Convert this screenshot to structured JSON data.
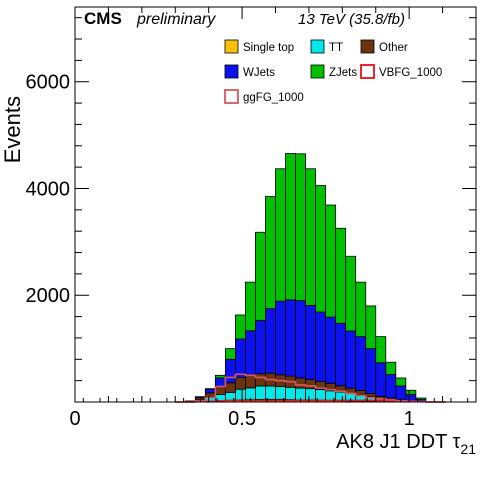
{
  "chart_data": {
    "type": "bar",
    "stacked": true,
    "experiment": "CMS",
    "status": "preliminary",
    "energy": "13 TeV (35.8/fb)",
    "xlabel_main": "AK8 J1 DDT ",
    "xlabel_symbol": "τ",
    "xlabel_sub": "21",
    "ylabel": "Events",
    "xlim": [
      0,
      1.2
    ],
    "ylim": [
      0,
      7400
    ],
    "x_ticks": [
      {
        "value": 0,
        "label": "0"
      },
      {
        "value": 0.5,
        "label": "0.5"
      },
      {
        "value": 1,
        "label": "1"
      }
    ],
    "y_ticks": [
      {
        "value": 2000,
        "label": "2000"
      },
      {
        "value": 4000,
        "label": "4000"
      },
      {
        "value": 6000,
        "label": "6000"
      }
    ],
    "grid": false,
    "legend_position": "top-right",
    "bin_edges": [
      0.3,
      0.33,
      0.36,
      0.39,
      0.42,
      0.45,
      0.48,
      0.51,
      0.54,
      0.57,
      0.6,
      0.63,
      0.66,
      0.69,
      0.72,
      0.75,
      0.78,
      0.81,
      0.84,
      0.87,
      0.9,
      0.93,
      0.96,
      0.99,
      1.02,
      1.05,
      1.08,
      1.11
    ],
    "stack": [
      {
        "name": "Single top",
        "color": "#ffc20a",
        "values": [
          0,
          0,
          0,
          10,
          20,
          30,
          40,
          45,
          50,
          50,
          50,
          45,
          40,
          40,
          35,
          30,
          25,
          20,
          15,
          10,
          5,
          5,
          0,
          0,
          0,
          0,
          0
        ]
      },
      {
        "name": "TT",
        "color": "#00e8e8",
        "values": [
          0,
          10,
          40,
          80,
          120,
          150,
          200,
          220,
          250,
          250,
          240,
          230,
          220,
          210,
          200,
          180,
          160,
          140,
          120,
          90,
          60,
          40,
          20,
          10,
          5,
          0,
          0
        ]
      },
      {
        "name": "Other",
        "color": "#6b3310",
        "values": [
          0,
          10,
          40,
          80,
          140,
          180,
          220,
          230,
          230,
          240,
          220,
          210,
          190,
          170,
          150,
          140,
          120,
          100,
          80,
          60,
          40,
          30,
          20,
          10,
          5,
          0,
          0
        ]
      },
      {
        "name": "WJets",
        "color": "#0b12ee",
        "values": [
          0,
          0,
          20,
          70,
          170,
          440,
          720,
          840,
          1000,
          1210,
          1380,
          1430,
          1450,
          1390,
          1300,
          1240,
          1170,
          1070,
          1010,
          840,
          630,
          440,
          260,
          120,
          35,
          0,
          0
        ]
      },
      {
        "name": "ZJets",
        "color": "#00c000",
        "values": [
          0,
          0,
          0,
          10,
          50,
          200,
          450,
          910,
          1650,
          2100,
          2480,
          2740,
          2750,
          2560,
          2370,
          2100,
          1780,
          1400,
          1020,
          800,
          490,
          230,
          150,
          80,
          30,
          0,
          0
        ]
      }
    ],
    "signals": [
      {
        "name": "VBFG_1000",
        "color": "#e8111f",
        "values": [
          0,
          0,
          5,
          10,
          20,
          30,
          30,
          30,
          30,
          30,
          30,
          30,
          30,
          30,
          30,
          30,
          30,
          30,
          30,
          30,
          30,
          25,
          20,
          15,
          10,
          0,
          0
        ]
      },
      {
        "name": "ggFG_1000",
        "color": "#d9585b",
        "values": [
          0,
          0,
          20,
          80,
          290,
          460,
          520,
          500,
          460,
          420,
          400,
          380,
          320,
          300,
          260,
          230,
          200,
          160,
          120,
          80,
          60,
          40,
          20,
          10,
          5,
          0,
          0
        ]
      }
    ],
    "legend": [
      {
        "label": "Single top",
        "color": "#ffc20a",
        "style": "fill"
      },
      {
        "label": "TT",
        "color": "#00e8e8",
        "style": "fill"
      },
      {
        "label": "Other",
        "color": "#6b3310",
        "style": "fill"
      },
      {
        "label": "WJets",
        "color": "#0b12ee",
        "style": "fill"
      },
      {
        "label": "ZJets",
        "color": "#00c000",
        "style": "fill"
      },
      {
        "label": "VBFG_1000",
        "color": "#e8111f",
        "style": "line"
      },
      {
        "label": "ggFG_1000",
        "color": "#d9585b",
        "style": "line"
      }
    ]
  }
}
